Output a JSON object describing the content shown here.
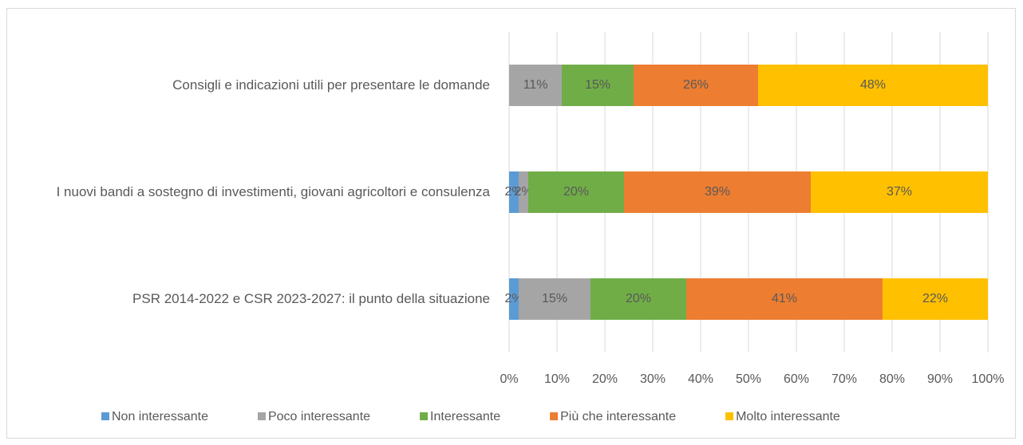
{
  "chart_data": {
    "type": "stacked_bar_horizontal",
    "categories": [
      "Consigli e indicazioni utili per presentare le domande",
      "I nuovi bandi a sostegno di investimenti, giovani agricoltori e consulenza",
      "PSR 2014-2022 e CSR 2023-2027: il punto della situazione"
    ],
    "series": [
      {
        "name": "Non interessante",
        "color": "#5b9bd5",
        "values": [
          null,
          2,
          2
        ],
        "value_labels": [
          null,
          "2%",
          "2%"
        ]
      },
      {
        "name": "Poco interessante",
        "color": "#a5a5a5",
        "values": [
          11,
          2,
          15
        ],
        "value_labels": [
          "11%",
          "2%",
          "15%"
        ]
      },
      {
        "name": "Interessante",
        "color": "#70ad47",
        "values": [
          15,
          20,
          20
        ],
        "value_labels": [
          "15%",
          "20%",
          "20%"
        ]
      },
      {
        "name": "Più che interessante",
        "color": "#ed7d31",
        "values": [
          26,
          39,
          41
        ],
        "value_labels": [
          "26%",
          "39%",
          "41%"
        ]
      },
      {
        "name": "Molto interessante",
        "color": "#ffc000",
        "values": [
          48,
          37,
          22
        ],
        "value_labels": [
          "48%",
          "37%",
          "22%"
        ]
      }
    ],
    "xlim": [
      0,
      100
    ],
    "xticks": [
      {
        "value": 0,
        "label": "0%"
      },
      {
        "value": 10,
        "label": "10%"
      },
      {
        "value": 20,
        "label": "20%"
      },
      {
        "value": 30,
        "label": "30%"
      },
      {
        "value": 40,
        "label": "40%"
      },
      {
        "value": 50,
        "label": "50%"
      },
      {
        "value": 60,
        "label": "60%"
      },
      {
        "value": 70,
        "label": "70%"
      },
      {
        "value": 80,
        "label": "80%"
      },
      {
        "value": 90,
        "label": "90%"
      },
      {
        "value": 100,
        "label": "100%"
      }
    ],
    "grid": true,
    "legend": "bottom"
  }
}
